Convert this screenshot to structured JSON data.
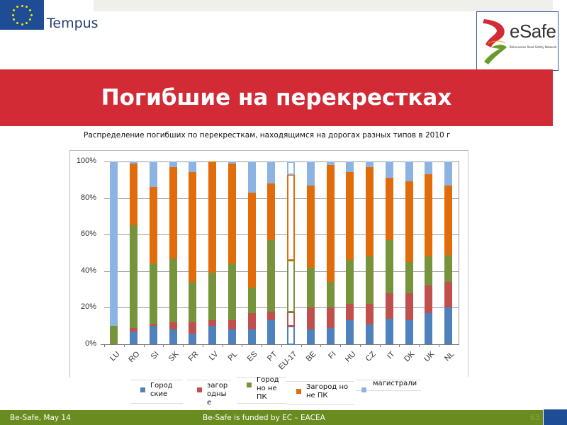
{
  "header": {
    "tempus_label": "Tempus",
    "logo_text": "eSafe",
    "logo_subtext": "Belarussian Road Safety Network"
  },
  "slide": {
    "title": "Погибшие на перекрестках",
    "subtitle": "Распределение погибших по перекресткам, находящимся на дорогах разных типов в 2010 г"
  },
  "legend": [
    {
      "label": "Город ские",
      "color": "#4f81bd"
    },
    {
      "label": "загор одны е",
      "color": "#c0504d"
    },
    {
      "label": "Город но не ПК",
      "color": "#77933c"
    },
    {
      "label": "Загород но не ПК",
      "color": "#e36c0a"
    },
    {
      "label": "магистрали",
      "color": "#8db3e2"
    }
  ],
  "footer": {
    "left": "Be-Safe, May 14",
    "center": "Be-Safe is funded by EC – EACEA",
    "page_number": "63"
  },
  "chart_data": {
    "type": "bar",
    "stacked": true,
    "percent": true,
    "title": "Распределение погибших по перекресткам, находящимся на дорогах разных типов в 2010 г",
    "xlabel": "",
    "ylabel": "",
    "ylim": [
      0,
      100
    ],
    "yticks": [
      "0%",
      "20%",
      "40%",
      "60%",
      "80%",
      "100%"
    ],
    "grid": true,
    "legend_position": "bottom",
    "categories": [
      "LU",
      "RO",
      "SI",
      "SK",
      "FR",
      "LV",
      "PL",
      "ES",
      "PT",
      "EU-17",
      "BE",
      "FI",
      "HU",
      "CZ",
      "IT",
      "DK",
      "UK",
      "NL"
    ],
    "highlighted": [
      "EU-17"
    ],
    "series": [
      {
        "name": "Город ские",
        "color": "#4f81bd",
        "values": [
          0,
          7,
          10,
          8,
          6,
          10,
          8,
          8,
          13,
          10,
          8,
          9,
          13,
          11,
          14,
          13,
          17,
          20
        ]
      },
      {
        "name": "загор одны е",
        "color": "#c0504d",
        "values": [
          0,
          2,
          1,
          4,
          6,
          3,
          5,
          9,
          5,
          8,
          12,
          11,
          9,
          11,
          14,
          15,
          15,
          14
        ]
      },
      {
        "name": "Город но не ПК",
        "color": "#77933c",
        "values": [
          10,
          56,
          33,
          35,
          22,
          26,
          31,
          14,
          39,
          28,
          22,
          14,
          24,
          26,
          29,
          17,
          16,
          15
        ]
      },
      {
        "name": "Загород но не ПК",
        "color": "#e36c0a",
        "values": [
          0,
          34,
          42,
          50,
          60,
          61,
          55,
          52,
          31,
          47,
          45,
          64,
          48,
          49,
          34,
          44,
          45,
          38
        ]
      },
      {
        "name": "магистрали",
        "color": "#8db3e2",
        "values": [
          90,
          1,
          14,
          3,
          6,
          0,
          1,
          17,
          12,
          7,
          13,
          2,
          6,
          3,
          9,
          11,
          7,
          13
        ]
      }
    ]
  }
}
